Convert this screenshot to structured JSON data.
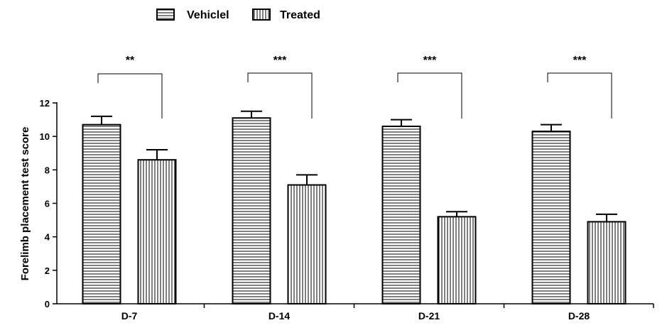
{
  "chart_data": {
    "type": "bar",
    "title": "",
    "xlabel": "",
    "ylabel": "Forelimb placement test score",
    "ylim": [
      0,
      12
    ],
    "yticks": [
      0,
      2,
      4,
      6,
      8,
      10,
      12
    ],
    "categories": [
      "D-7",
      "D-14",
      "D-21",
      "D-28"
    ],
    "series": [
      {
        "name": "Vehiclel",
        "pattern": "horizontal",
        "values": [
          10.7,
          11.1,
          10.6,
          10.3
        ],
        "errors": [
          0.5,
          0.4,
          0.4,
          0.4
        ]
      },
      {
        "name": "Treated",
        "pattern": "vertical",
        "values": [
          8.6,
          7.1,
          5.2,
          4.9
        ],
        "errors": [
          0.6,
          0.6,
          0.3,
          0.45
        ]
      }
    ],
    "significance": [
      "**",
      "***",
      "***",
      "***"
    ],
    "legend_position": "top",
    "grid": false,
    "colors": {
      "stroke": "#000000",
      "fill": "#ffffff"
    }
  }
}
